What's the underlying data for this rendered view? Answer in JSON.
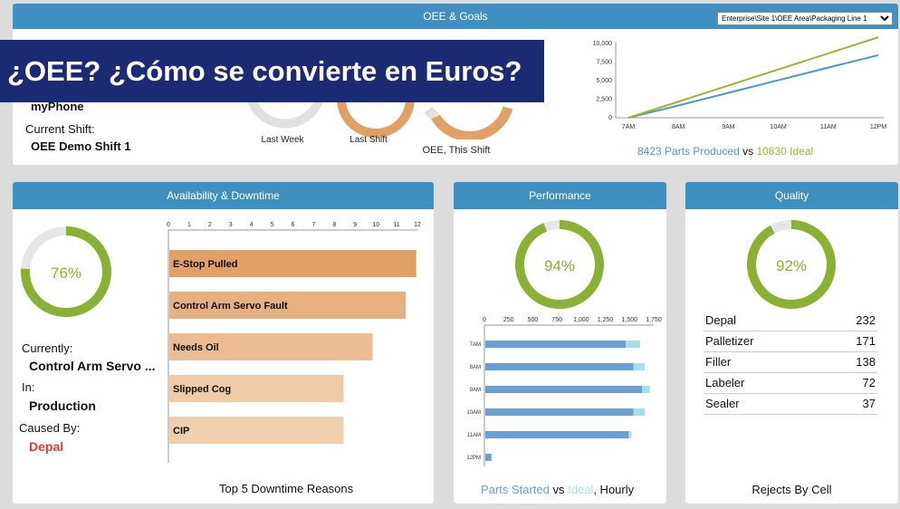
{
  "colors": {
    "header": "#3f8fc0",
    "green": "#8ab034",
    "orange": "#e0a066",
    "blue": "#6a9fd4",
    "lightblue": "#a9dde8",
    "red": "#e53935",
    "banner": "#1a2a73"
  },
  "banner": {
    "text": "¿OEE? ¿Cómo se convierte en Euros?"
  },
  "oee_panel": {
    "title": "OEE & Goals",
    "selector_value": "Enterprise\\Site 1\\OEE Area\\Packaging Line 1",
    "device_value": "myPhone",
    "shift_label": "Current Shift:",
    "shift_value": "OEE Demo Shift 1",
    "gauges": [
      {
        "label": "Last Week"
      },
      {
        "label": "Last Shift"
      },
      {
        "label": "OEE, This Shift"
      }
    ],
    "legend": {
      "produced_text": "8423 Parts Produced",
      "vs": "vs",
      "ideal_text": "10830 Ideal"
    }
  },
  "parts_chart": {
    "chart_data": {
      "type": "line",
      "x": [
        "7AM",
        "8AM",
        "9AM",
        "10AM",
        "11AM",
        "12PM"
      ],
      "ylim": [
        0,
        10000
      ],
      "y_ticks": [
        "0",
        "2,500",
        "5,000",
        "7,500",
        "10,000"
      ],
      "series": [
        {
          "name": "Parts Produced",
          "values": [
            0,
            1650,
            3350,
            5050,
            6750,
            8423
          ]
        },
        {
          "name": "Ideal",
          "values": [
            0,
            2166,
            4332,
            6498,
            8664,
            10830
          ]
        }
      ]
    }
  },
  "availability": {
    "title": "Availability & Downtime",
    "gauge": {
      "value": 0.76,
      "text": "76%"
    },
    "currently_label": "Currently:",
    "currently_value": "Control Arm Servo ...",
    "in_label": "In:",
    "in_value": "Production",
    "caused_label": "Caused By:",
    "caused_value": "Depal",
    "chart_title": "Top 5 Downtime Reasons",
    "chart_data": {
      "type": "bar",
      "categories": [
        "E-Stop Pulled",
        "Control Arm Servo Fault",
        "Needs Oil",
        "Slipped Cog",
        "CIP"
      ],
      "values": [
        11.9,
        11.4,
        9.8,
        8.4,
        8.4
      ],
      "xlim": [
        0,
        12
      ],
      "ticks": [
        "0",
        "1",
        "2",
        "3",
        "4",
        "5",
        "6",
        "7",
        "8",
        "9",
        "10",
        "11",
        "12"
      ]
    }
  },
  "performance": {
    "title": "Performance",
    "gauge": {
      "value": 0.94,
      "text": "94%"
    },
    "legend": {
      "started": "Parts Started",
      "vs": "vs",
      "ideal": "Ideal",
      "hourly": ", Hourly"
    },
    "chart_data": {
      "type": "bar",
      "categories": [
        "7AM",
        "8AM",
        "9AM",
        "10AM",
        "11AM",
        "12PM"
      ],
      "ticks": [
        "0",
        "250",
        "500",
        "750",
        "1,000",
        "1,250",
        "1,500",
        "1,750"
      ],
      "xlim": [
        0,
        1750
      ],
      "series": [
        {
          "name": "Parts Started",
          "values": [
            1450,
            1530,
            1620,
            1530,
            1480,
            60
          ]
        },
        {
          "name": "Ideal",
          "values": [
            1600,
            1650,
            1700,
            1650,
            1510,
            70
          ]
        }
      ]
    }
  },
  "quality": {
    "title": "Quality",
    "gauge": {
      "value": 0.92,
      "text": "92%"
    },
    "rows": [
      {
        "name": "Depal",
        "count": "232"
      },
      {
        "name": "Palletizer",
        "count": "171"
      },
      {
        "name": "Filler",
        "count": "138"
      },
      {
        "name": "Labeler",
        "count": "72"
      },
      {
        "name": "Sealer",
        "count": "37"
      }
    ],
    "caption": "Rejects By Cell"
  }
}
